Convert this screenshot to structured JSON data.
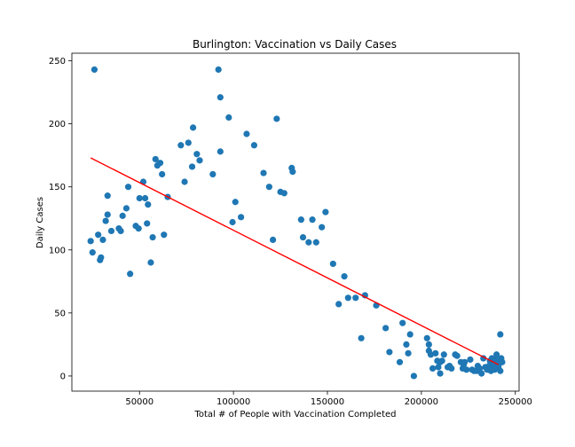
{
  "chart_data": {
    "type": "scatter",
    "title": "Burlington: Vaccination vs Daily Cases",
    "xlabel": "Total # of People with Vaccination Completed",
    "ylabel": "Daily Cases",
    "xlim": [
      14000,
      252000
    ],
    "ylim": [
      -12,
      256
    ],
    "xticks": [
      50000,
      100000,
      150000,
      200000,
      250000
    ],
    "yticks": [
      0,
      50,
      100,
      150,
      200,
      250
    ],
    "grid": false,
    "point_color": "#1f77b4",
    "trend_color": "#ff0000",
    "trendline": {
      "x": [
        24000,
        241000
      ],
      "y": [
        173,
        9
      ]
    },
    "points": [
      [
        24000,
        107
      ],
      [
        25000,
        98
      ],
      [
        26000,
        243
      ],
      [
        28000,
        112
      ],
      [
        29000,
        92
      ],
      [
        29500,
        94
      ],
      [
        30500,
        108
      ],
      [
        32000,
        123
      ],
      [
        33000,
        128
      ],
      [
        33000,
        143
      ],
      [
        35000,
        115
      ],
      [
        39000,
        117
      ],
      [
        40000,
        115
      ],
      [
        41000,
        127
      ],
      [
        43000,
        133
      ],
      [
        44000,
        150
      ],
      [
        45000,
        81
      ],
      [
        48000,
        119
      ],
      [
        49500,
        117
      ],
      [
        50000,
        141
      ],
      [
        52000,
        154
      ],
      [
        53000,
        141
      ],
      [
        54000,
        121
      ],
      [
        54500,
        136
      ],
      [
        56000,
        90
      ],
      [
        57000,
        110
      ],
      [
        58500,
        172
      ],
      [
        59500,
        167
      ],
      [
        61000,
        169
      ],
      [
        62000,
        160
      ],
      [
        63000,
        112
      ],
      [
        65000,
        142
      ],
      [
        72000,
        183
      ],
      [
        74000,
        154
      ],
      [
        76000,
        185
      ],
      [
        78000,
        166
      ],
      [
        78500,
        197
      ],
      [
        80500,
        176
      ],
      [
        82000,
        171
      ],
      [
        89000,
        160
      ],
      [
        92000,
        243
      ],
      [
        93000,
        221
      ],
      [
        93000,
        178
      ],
      [
        97500,
        205
      ],
      [
        99500,
        122
      ],
      [
        101000,
        138
      ],
      [
        104000,
        126
      ],
      [
        107000,
        192
      ],
      [
        111000,
        183
      ],
      [
        116000,
        161
      ],
      [
        119000,
        150
      ],
      [
        121000,
        108
      ],
      [
        123000,
        204
      ],
      [
        125000,
        146
      ],
      [
        127000,
        145
      ],
      [
        131000,
        165
      ],
      [
        131500,
        162
      ],
      [
        136000,
        124
      ],
      [
        137000,
        110
      ],
      [
        140000,
        106
      ],
      [
        142000,
        124
      ],
      [
        144000,
        106
      ],
      [
        147000,
        118
      ],
      [
        149000,
        130
      ],
      [
        153000,
        89
      ],
      [
        156000,
        57
      ],
      [
        159000,
        79
      ],
      [
        161000,
        62
      ],
      [
        165000,
        62
      ],
      [
        168000,
        30
      ],
      [
        170000,
        64
      ],
      [
        176000,
        56
      ],
      [
        181000,
        38
      ],
      [
        183000,
        19
      ],
      [
        188500,
        11
      ],
      [
        190000,
        42
      ],
      [
        192000,
        25
      ],
      [
        193000,
        18
      ],
      [
        194000,
        33
      ],
      [
        196000,
        0
      ],
      [
        203000,
        30
      ],
      [
        204000,
        25
      ],
      [
        204000,
        20
      ],
      [
        205000,
        17
      ],
      [
        206000,
        6
      ],
      [
        207500,
        18
      ],
      [
        208500,
        12
      ],
      [
        209000,
        7
      ],
      [
        210000,
        2
      ],
      [
        210000,
        11
      ],
      [
        211000,
        12
      ],
      [
        212000,
        17
      ],
      [
        214000,
        7
      ],
      [
        215000,
        8
      ],
      [
        216000,
        6
      ],
      [
        218000,
        17
      ],
      [
        219000,
        16
      ],
      [
        221000,
        11
      ],
      [
        222000,
        6
      ],
      [
        222500,
        9
      ],
      [
        223000,
        11
      ],
      [
        224000,
        5
      ],
      [
        226000,
        13
      ],
      [
        227000,
        5
      ],
      [
        228000,
        4
      ],
      [
        229500,
        4
      ],
      [
        230000,
        8
      ],
      [
        231000,
        6
      ],
      [
        232000,
        2
      ],
      [
        233000,
        14
      ],
      [
        234000,
        7
      ],
      [
        235000,
        5
      ],
      [
        236000,
        8
      ],
      [
        236500,
        12
      ],
      [
        237000,
        4
      ],
      [
        237500,
        14
      ],
      [
        238000,
        6
      ],
      [
        238500,
        9
      ],
      [
        239000,
        11
      ],
      [
        239000,
        5
      ],
      [
        239500,
        13
      ],
      [
        240000,
        17
      ],
      [
        240500,
        12
      ],
      [
        241000,
        7
      ],
      [
        241500,
        10
      ],
      [
        242000,
        4
      ],
      [
        242000,
        33
      ],
      [
        242500,
        14
      ],
      [
        243000,
        11
      ]
    ]
  }
}
